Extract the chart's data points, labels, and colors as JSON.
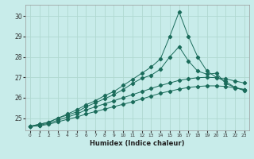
{
  "xlabel": "Humidex (Indice chaleur)",
  "bg_color": "#c8ecea",
  "grid_color": "#b0d8d0",
  "line_color": "#1a6b5a",
  "x_values": [
    0,
    1,
    2,
    3,
    4,
    5,
    6,
    7,
    8,
    9,
    10,
    11,
    12,
    13,
    14,
    15,
    16,
    17,
    18,
    19,
    20,
    21,
    22,
    23
  ],
  "series_spike": [
    24.6,
    24.7,
    24.8,
    25.0,
    25.2,
    25.4,
    25.65,
    25.85,
    26.1,
    26.3,
    26.6,
    26.9,
    27.2,
    27.5,
    27.9,
    29.0,
    30.2,
    29.0,
    28.0,
    27.3,
    27.0,
    26.8,
    26.5,
    26.35
  ],
  "series_mid1": [
    24.6,
    24.7,
    24.8,
    25.0,
    25.15,
    25.3,
    25.55,
    25.75,
    25.95,
    26.15,
    26.4,
    26.7,
    26.95,
    27.1,
    27.4,
    28.0,
    28.5,
    27.8,
    27.3,
    27.15,
    27.2,
    26.7,
    26.5,
    26.4
  ],
  "series_linear1": [
    24.6,
    24.65,
    24.75,
    24.9,
    25.05,
    25.2,
    25.4,
    25.55,
    25.7,
    25.85,
    26.0,
    26.15,
    26.3,
    26.45,
    26.6,
    26.72,
    26.85,
    26.92,
    26.98,
    27.0,
    26.98,
    26.92,
    26.82,
    26.72
  ],
  "series_linear2": [
    24.6,
    24.62,
    24.7,
    24.82,
    24.94,
    25.05,
    25.2,
    25.32,
    25.44,
    25.56,
    25.68,
    25.8,
    25.94,
    26.08,
    26.22,
    26.32,
    26.42,
    26.5,
    26.55,
    26.58,
    26.58,
    26.55,
    26.48,
    26.4
  ],
  "ylim_min": 24.4,
  "ylim_max": 30.55,
  "yticks": [
    25,
    26,
    27,
    28,
    29,
    30
  ],
  "xticks": [
    0,
    1,
    2,
    3,
    4,
    5,
    6,
    7,
    8,
    9,
    10,
    11,
    12,
    13,
    14,
    15,
    16,
    17,
    18,
    19,
    20,
    21,
    22,
    23
  ]
}
